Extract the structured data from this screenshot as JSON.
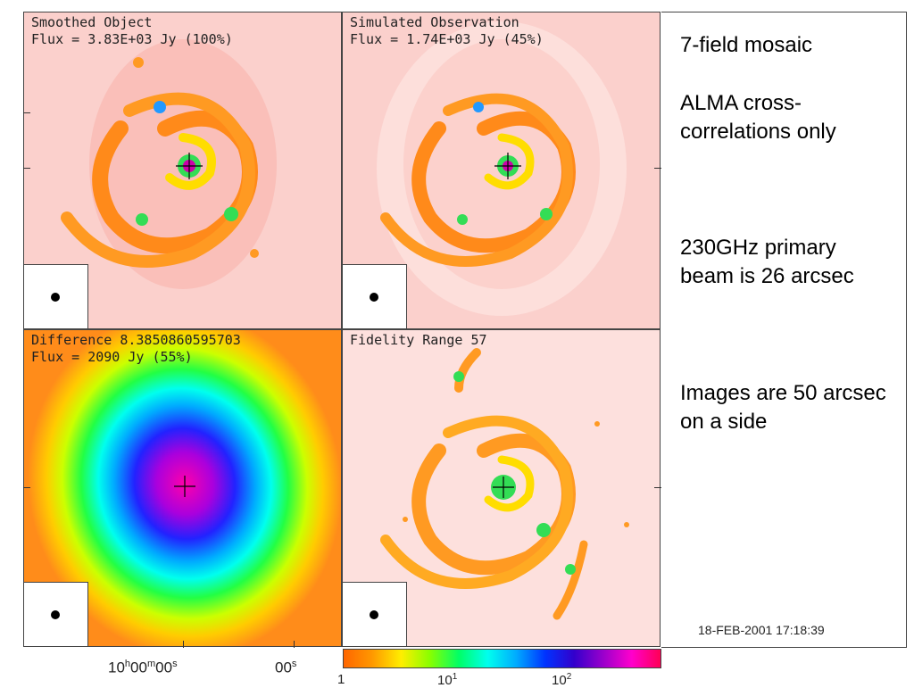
{
  "panels": [
    {
      "line1": "Smoothed Object",
      "line2": "Flux = 3.83E+03 Jy (100%)"
    },
    {
      "line1": "Simulated Observation",
      "line2": "Flux = 1.74E+03 Jy (45%)"
    },
    {
      "line1": "Difference 8.3850860595703",
      "line2": "Flux = 2090 Jy (55%)"
    },
    {
      "line1": "Fidelity Range 57",
      "line2": ""
    }
  ],
  "notes": {
    "mosaic": "7-field mosaic",
    "alma": "ALMA cross-correlations only",
    "beam": "230GHz primary beam is 26 arcsec",
    "images": "Images are 50 arcsec on a side"
  },
  "timestamp": "18-FEB-2001 17:18:39",
  "x_axis": {
    "label1_pre": "10",
    "label1_h": "h",
    "label1_mid": "00",
    "label1_m": "m",
    "label1_post": "00",
    "label1_s": "s",
    "label2": "00",
    "label2_s": "s"
  },
  "colorbar": {
    "tick1": "1",
    "tick2_base": "10",
    "tick2_exp": "1",
    "tick3_base": "10",
    "tick3_exp": "2"
  },
  "colors": {
    "panel_bg_pink": "#fbd0cc",
    "panel_bg_light": "#fde0dd",
    "orange_bg": "#ff8c1a"
  }
}
